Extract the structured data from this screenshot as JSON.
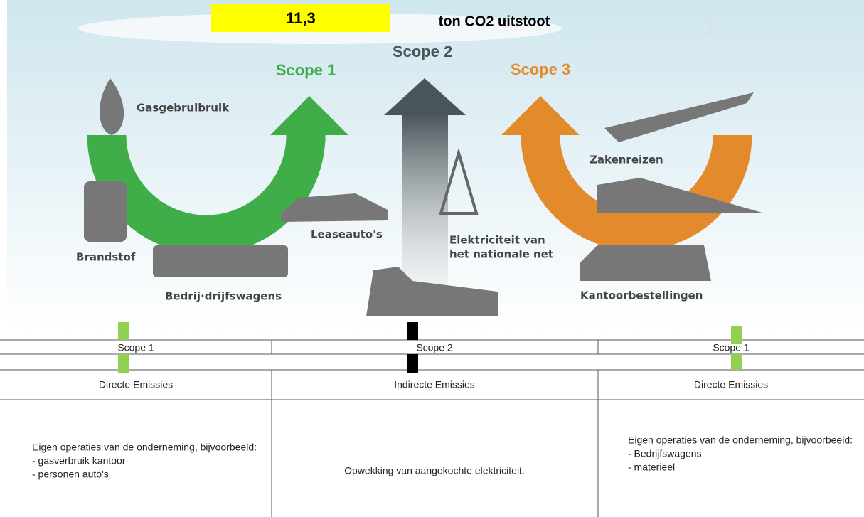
{
  "header": {
    "value": "11,3",
    "label": "ton CO2 uitstoot"
  },
  "diagram": {
    "scopes": [
      "Scope 1",
      "Scope 2",
      "Scope 3"
    ],
    "labels": {
      "gas": "Gasgebruibruik",
      "fuel": "Brandstof",
      "trucks": "Bedrij·drijfswagens",
      "lease": "Leaseauto's",
      "elec1": "Elektriciteit van",
      "elec2": "het nationale net",
      "travel": "Zakenreizen",
      "office": "Kantoorbestellingen"
    }
  },
  "table": {
    "headers": [
      "Scope 1",
      "Scope 2",
      "Scope 1"
    ],
    "types": [
      "Directe Emissies",
      "Indirecte Emissies",
      "Directe Emissies"
    ],
    "descriptions": [
      [
        "Eigen operaties van de onderneming, bijvoorbeeld:",
        "- gasverbruik kantoor",
        "- personen auto's"
      ],
      [
        "Opwekking van aangekochte elektriciteit."
      ],
      [
        "Eigen operaties van de onderneming, bijvoorbeeld:",
        "- Bedrijfswagens",
        "- materieel"
      ]
    ]
  }
}
